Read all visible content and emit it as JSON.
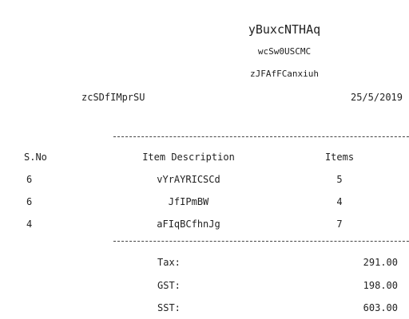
{
  "header": {
    "store_name": "yBuxcNTHAq",
    "line1": "wcSw0USCMC",
    "line2": "zJFAfFCanxiuh",
    "customer": "zcSDfIMprSU",
    "date": "25/5/2019"
  },
  "table": {
    "columns": [
      "S.No",
      "Item Description",
      "Items"
    ],
    "rows": [
      {
        "sno": "6",
        "desc": "vYrAYRICSCd",
        "qty": "5"
      },
      {
        "sno": "6",
        "desc": "JfIPmBW",
        "qty": "4"
      },
      {
        "sno": "4",
        "desc": "aFIqBCfhnJg",
        "qty": "7"
      }
    ]
  },
  "totals": [
    {
      "label": "Tax:",
      "value": "291.00"
    },
    {
      "label": "GST:",
      "value": "198.00"
    },
    {
      "label": "SST:",
      "value": "603.00"
    }
  ]
}
